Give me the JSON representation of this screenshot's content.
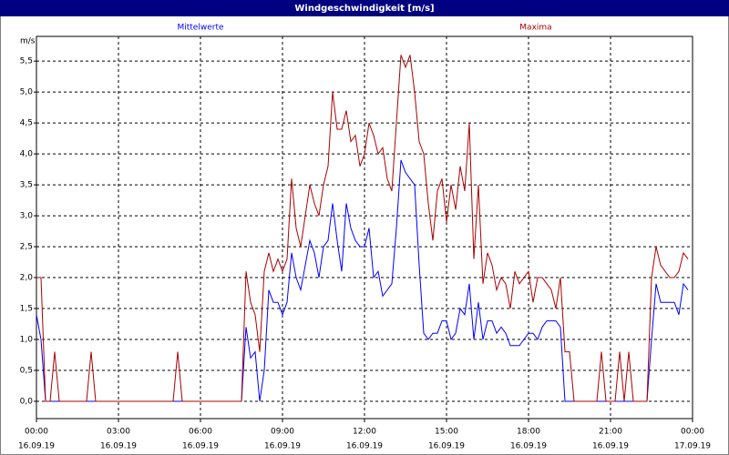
{
  "chart_data": {
    "type": "line",
    "title": "Windgeschwindigkeit [m/s]",
    "y_label": "m/s",
    "grid": true,
    "xlim": [
      "00:00",
      "24:00"
    ],
    "xticks": [
      {
        "value": "00:00",
        "label": "00:00",
        "date": "16.09.19"
      },
      {
        "value": "03:00",
        "label": "03:00",
        "date": "16.09.19"
      },
      {
        "value": "06:00",
        "label": "06:00",
        "date": "16.09.19"
      },
      {
        "value": "09:00",
        "label": "09:00",
        "date": "16.09.19"
      },
      {
        "value": "12:00",
        "label": "12:00",
        "date": "16.09.19"
      },
      {
        "value": "15:00",
        "label": "15:00",
        "date": "16.09.19"
      },
      {
        "value": "18:00",
        "label": "18:00",
        "date": "16.09.19"
      },
      {
        "value": "21:00",
        "label": "21:00",
        "date": "16.09.19"
      },
      {
        "value": "24:00",
        "label": "00:00",
        "date": "17.09.19"
      }
    ],
    "ylim": [
      -0.28,
      5.9
    ],
    "yticks": [
      {
        "value": 0,
        "label": "0,0"
      },
      {
        "value": 0.5,
        "label": "0,5"
      },
      {
        "value": 1,
        "label": "1,0"
      },
      {
        "value": 1.5,
        "label": "1,5"
      },
      {
        "value": 2,
        "label": "2,0"
      },
      {
        "value": 2.5,
        "label": "2,5"
      },
      {
        "value": 3,
        "label": "3,0"
      },
      {
        "value": 3.5,
        "label": "3,5"
      },
      {
        "value": 4,
        "label": "4,0"
      },
      {
        "value": 4.5,
        "label": "4,5"
      },
      {
        "value": 5,
        "label": "5,0"
      },
      {
        "value": 5.5,
        "label": "5,5"
      }
    ],
    "x": [
      "00:00",
      "00:10",
      "00:20",
      "00:30",
      "00:40",
      "00:50",
      "01:00",
      "01:10",
      "01:20",
      "01:30",
      "01:40",
      "01:50",
      "02:00",
      "02:10",
      "02:20",
      "02:30",
      "02:40",
      "02:50",
      "03:00",
      "03:10",
      "03:20",
      "03:30",
      "03:40",
      "03:50",
      "04:00",
      "04:10",
      "04:20",
      "04:30",
      "04:40",
      "04:50",
      "05:00",
      "05:10",
      "05:20",
      "05:30",
      "05:40",
      "05:50",
      "06:00",
      "06:10",
      "06:20",
      "06:30",
      "06:40",
      "06:50",
      "07:00",
      "07:10",
      "07:20",
      "07:30",
      "07:40",
      "07:50",
      "08:00",
      "08:10",
      "08:20",
      "08:30",
      "08:40",
      "08:50",
      "09:00",
      "09:10",
      "09:20",
      "09:30",
      "09:40",
      "09:50",
      "10:00",
      "10:10",
      "10:20",
      "10:30",
      "10:40",
      "10:50",
      "11:00",
      "11:10",
      "11:20",
      "11:30",
      "11:40",
      "11:50",
      "12:00",
      "12:10",
      "12:20",
      "12:30",
      "12:40",
      "12:50",
      "13:00",
      "13:10",
      "13:20",
      "13:30",
      "13:40",
      "13:50",
      "14:00",
      "14:10",
      "14:20",
      "14:30",
      "14:40",
      "14:50",
      "15:00",
      "15:10",
      "15:20",
      "15:30",
      "15:40",
      "15:50",
      "16:00",
      "16:10",
      "16:20",
      "16:30",
      "16:40",
      "16:50",
      "17:00",
      "17:10",
      "17:20",
      "17:30",
      "17:40",
      "17:50",
      "18:00",
      "18:10",
      "18:20",
      "18:30",
      "18:40",
      "18:50",
      "19:00",
      "19:10",
      "19:20",
      "19:30",
      "19:40",
      "19:50",
      "20:00",
      "20:10",
      "20:20",
      "20:30",
      "20:40",
      "20:50",
      "21:00",
      "21:10",
      "21:20",
      "21:30",
      "21:40",
      "21:50",
      "22:00",
      "22:10",
      "22:20",
      "22:30",
      "22:40",
      "22:50",
      "23:00",
      "23:10",
      "23:20",
      "23:30",
      "23:40",
      "23:50"
    ],
    "series": [
      {
        "name": "Mittelwerte",
        "color": "#0000ff",
        "values": [
          1.4,
          1.0,
          0,
          0,
          0,
          0,
          0,
          0,
          0,
          0,
          0,
          0,
          0,
          0,
          0,
          0,
          0,
          0,
          0,
          0,
          0,
          0,
          0,
          0,
          0,
          0,
          0,
          0,
          0,
          0,
          0,
          0,
          0,
          0,
          0,
          0,
          0,
          0,
          0,
          0,
          0,
          0,
          0,
          0,
          0,
          0,
          1.2,
          0.7,
          0.8,
          0,
          0.5,
          1.8,
          1.6,
          1.6,
          1.4,
          1.6,
          2.4,
          2.0,
          1.8,
          2.2,
          2.6,
          2.4,
          2.0,
          2.5,
          2.6,
          3.2,
          2.6,
          2.1,
          3.2,
          2.8,
          2.6,
          2.5,
          2.5,
          2.8,
          2.0,
          2.1,
          1.7,
          1.8,
          1.9,
          2.8,
          3.9,
          3.7,
          3.6,
          3.5,
          2.2,
          1.1,
          1.0,
          1.1,
          1.1,
          1.3,
          1.3,
          1.0,
          1.1,
          1.5,
          1.4,
          1.9,
          1.0,
          1.6,
          1.0,
          1.3,
          1.3,
          1.1,
          1.2,
          1.1,
          0.9,
          0.9,
          0.9,
          1.0,
          1.1,
          1.1,
          1.0,
          1.2,
          1.3,
          1.3,
          1.3,
          1.2,
          0,
          0,
          0,
          0,
          0,
          0,
          0,
          0,
          0,
          0,
          0,
          0,
          0,
          0,
          0,
          0,
          0,
          0,
          0,
          1.0,
          1.9,
          1.6,
          1.6,
          1.6,
          1.6,
          1.4,
          1.9,
          1.8
        ]
      },
      {
        "name": "Maxima",
        "color": "#aa0000",
        "values": [
          2.0,
          2.0,
          0,
          0,
          0.8,
          0,
          0,
          0,
          0,
          0,
          0,
          0,
          0.8,
          0,
          0,
          0,
          0,
          0,
          0,
          0,
          0,
          0,
          0,
          0,
          0,
          0,
          0,
          0,
          0,
          0,
          0,
          0.8,
          0,
          0,
          0,
          0,
          0,
          0,
          0,
          0,
          0,
          0,
          0,
          0,
          0,
          0,
          2.1,
          1.6,
          1.4,
          0.8,
          2.1,
          2.4,
          2.1,
          2.3,
          2.1,
          2.3,
          3.6,
          2.8,
          2.5,
          3.0,
          3.5,
          3.2,
          3.0,
          3.5,
          3.8,
          5.0,
          4.4,
          4.4,
          4.7,
          4.2,
          4.3,
          3.8,
          4.0,
          4.5,
          4.3,
          4.0,
          4.1,
          3.6,
          3.4,
          4.5,
          5.6,
          5.4,
          5.6,
          5.0,
          4.2,
          4.0,
          3.2,
          2.6,
          3.4,
          3.6,
          2.9,
          3.5,
          3.1,
          3.8,
          3.4,
          4.5,
          2.3,
          3.5,
          1.9,
          2.4,
          2.2,
          1.8,
          2.0,
          1.9,
          1.5,
          2.1,
          1.9,
          2.0,
          2.1,
          1.6,
          2.0,
          2.0,
          1.9,
          1.8,
          1.5,
          2.0,
          0.8,
          0.8,
          0,
          0,
          0,
          0,
          0,
          0,
          0.8,
          0,
          0,
          0,
          0.8,
          0,
          0.8,
          0,
          0,
          0,
          0,
          2.0,
          2.5,
          2.2,
          2.1,
          2.0,
          2.0,
          2.1,
          2.4,
          2.3
        ]
      }
    ]
  }
}
